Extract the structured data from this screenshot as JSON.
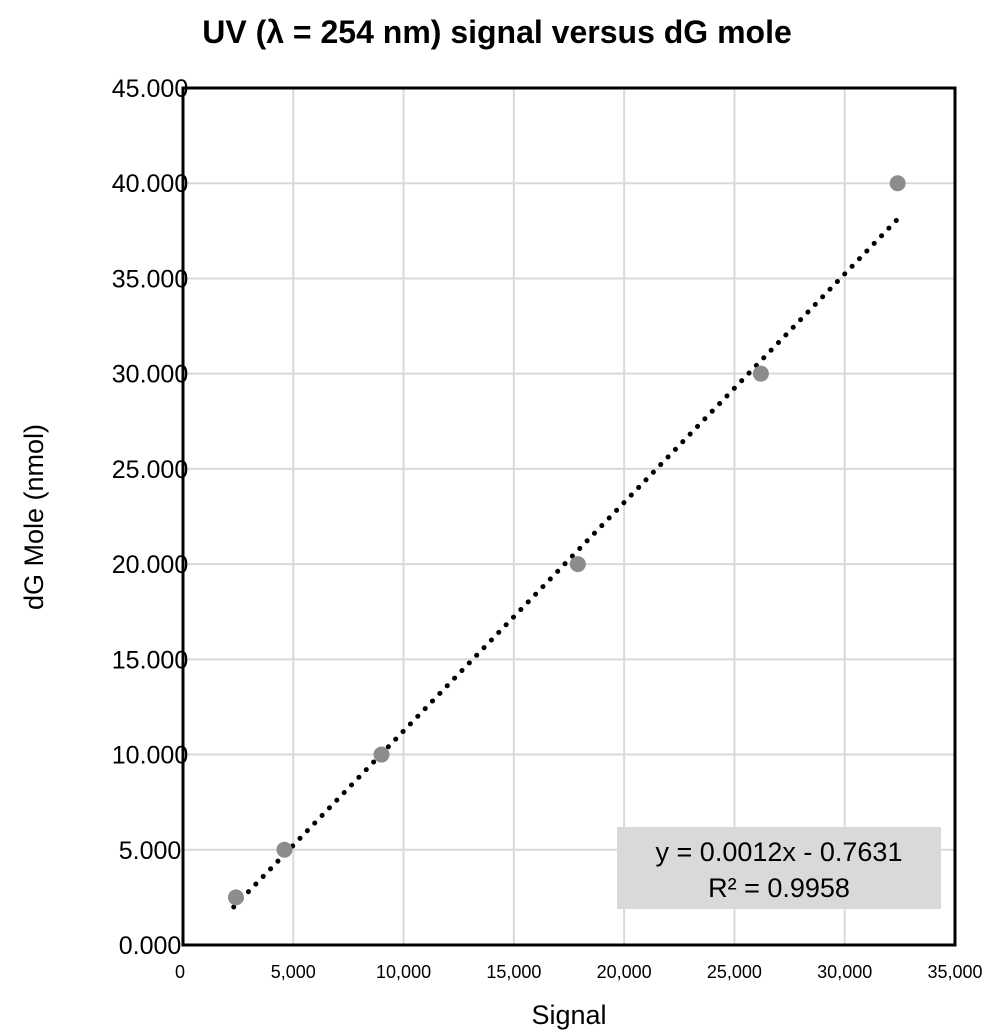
{
  "chart_data": {
    "type": "scatter",
    "title": "UV (λ = 254 nm) signal versus dG mole",
    "xlabel": "Signal",
    "ylabel": "dG Mole (nmol)",
    "xlim": [
      0,
      35000
    ],
    "ylim": [
      0,
      45
    ],
    "x_ticks": [
      "0",
      "5,000",
      "10,000",
      "15,000",
      "20,000",
      "25,000",
      "30,000",
      "35,000"
    ],
    "y_ticks": [
      "0.000",
      "5.000",
      "10.000",
      "15.000",
      "20.000",
      "25.000",
      "30.000",
      "35.000",
      "40.000",
      "45.000"
    ],
    "grid": true,
    "series": [
      {
        "x": [
          2400,
          4600,
          9000,
          17900,
          26200,
          32400
        ],
        "y": [
          2.5,
          5.0,
          10.0,
          20.0,
          30.0,
          40.0
        ],
        "color": "#8c8c8c"
      }
    ],
    "trendline": {
      "type": "linear",
      "slope": 0.0012,
      "intercept": -0.7631,
      "x_range": [
        2300,
        32500
      ],
      "style": "dotted",
      "color": "#000000",
      "equation_text": "y = 0.0012x - 0.7631",
      "r2_text": "R² = 0.9958",
      "label_background": "#d9d9d9"
    }
  }
}
